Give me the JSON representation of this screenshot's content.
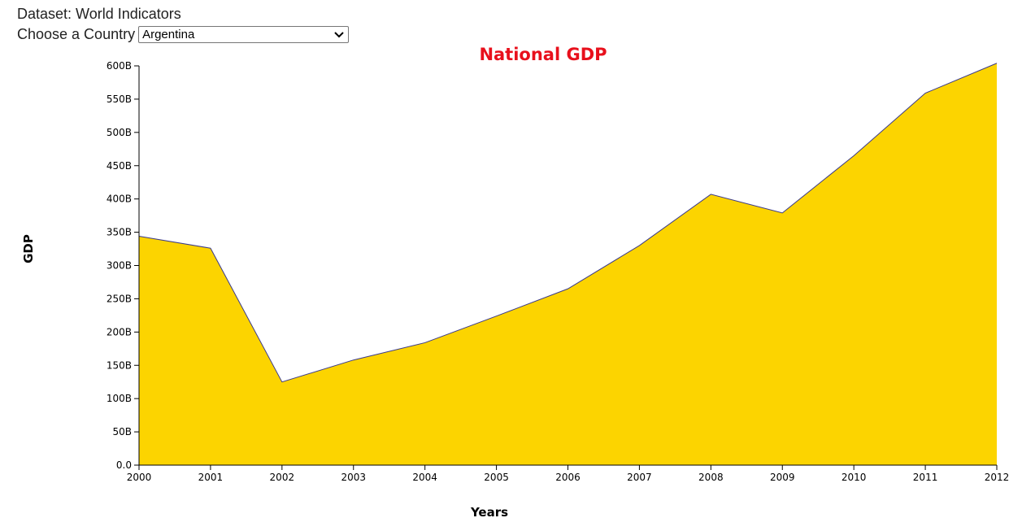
{
  "header": {
    "dataset_label": "Dataset: World Indicators",
    "country_label": "Choose a Country",
    "country_selected": "Argentina"
  },
  "colors": {
    "area_fill": "#fcd400",
    "area_stroke": "#3a3a8c",
    "title": "#e8101c"
  },
  "chart_data": {
    "type": "area",
    "title": "National GDP",
    "xlabel": "Years",
    "ylabel": "GDP",
    "x": [
      2000,
      2001,
      2002,
      2003,
      2004,
      2005,
      2006,
      2007,
      2008,
      2009,
      2010,
      2011,
      2012
    ],
    "series": [
      {
        "values": [
          344,
          326,
          125,
          158,
          184,
          224,
          265,
          330,
          407,
          379,
          465,
          559,
          604
        ]
      }
    ],
    "value_unit": "billions",
    "xlim": [
      2000,
      2012
    ],
    "ylim": [
      0,
      600
    ],
    "y_ticks": [
      "0.0",
      "50B",
      "100B",
      "150B",
      "200B",
      "250B",
      "300B",
      "350B",
      "400B",
      "450B",
      "500B",
      "550B",
      "600B"
    ],
    "x_ticks": [
      "2000",
      "2001",
      "2002",
      "2003",
      "2004",
      "2005",
      "2006",
      "2007",
      "2008",
      "2009",
      "2010",
      "2011",
      "2012"
    ],
    "grid": false
  }
}
